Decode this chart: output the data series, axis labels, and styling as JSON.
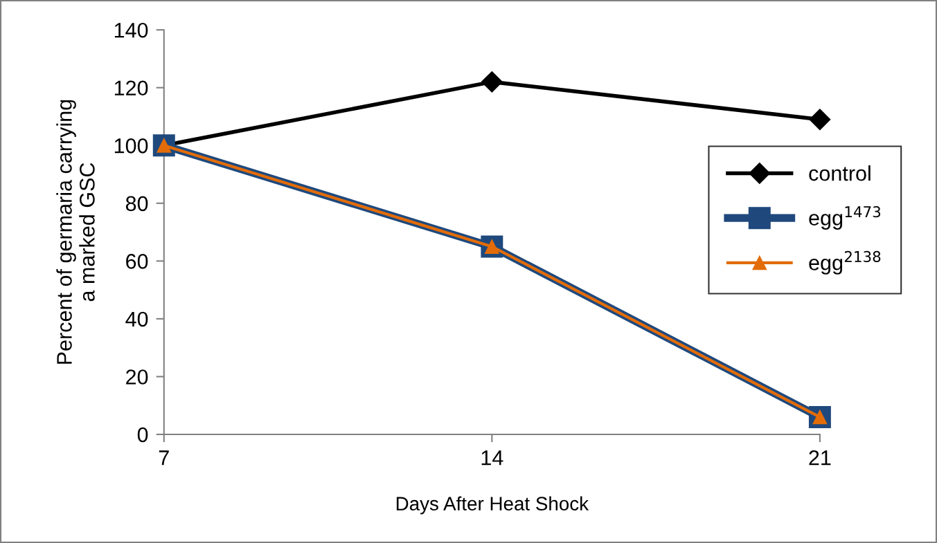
{
  "chart_data": {
    "type": "line",
    "xlabel": "Days After Heat Shock",
    "ylabel": "Percent of germaria carrying\na marked GSC",
    "x": [
      7,
      14,
      21
    ],
    "xlim": [
      7,
      21
    ],
    "xticks": [
      7,
      14,
      21
    ],
    "ylim": [
      0,
      140
    ],
    "yticks": [
      0,
      20,
      40,
      60,
      80,
      100,
      120,
      140
    ],
    "grid": false,
    "legend": "right",
    "line_style": "solid",
    "series": [
      {
        "name": "control",
        "color": "#000000",
        "marker": "diamond",
        "values": [
          100,
          122,
          109
        ]
      },
      {
        "name": "egg$^{1473}$",
        "color": "#1f497d",
        "marker": "square",
        "values": [
          100,
          65,
          6
        ]
      },
      {
        "name": "egg$^{2138}$",
        "color": "#e36c09",
        "marker": "triangle",
        "values": [
          100,
          65,
          6
        ]
      }
    ]
  }
}
